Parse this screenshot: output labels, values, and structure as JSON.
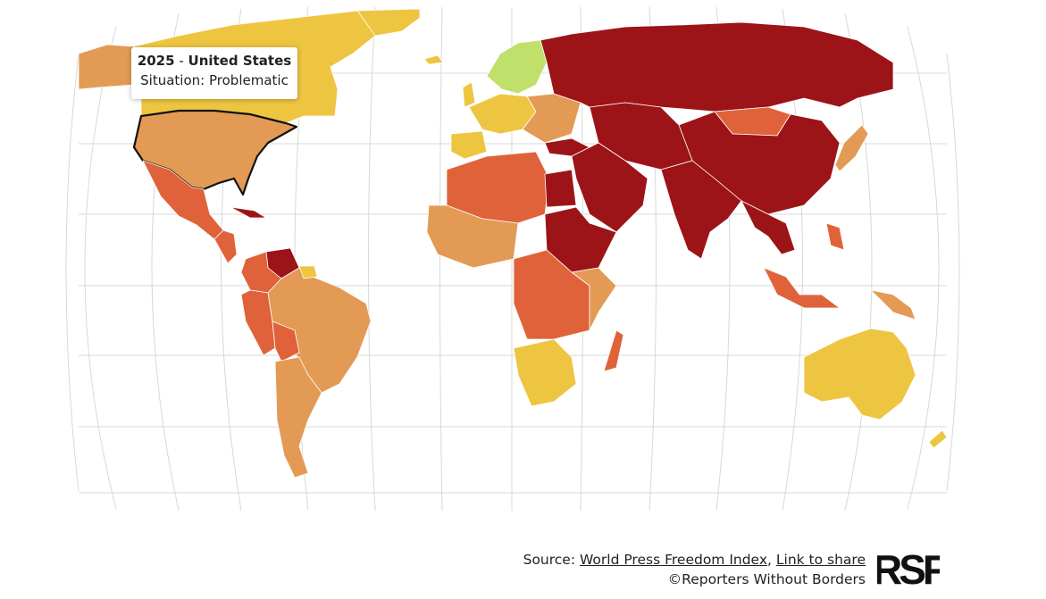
{
  "tooltip": {
    "year": "2025",
    "separator": " - ",
    "country": "United States",
    "situation_label": "Situation:",
    "situation_value": "Problematic"
  },
  "footer": {
    "source_label": "Source:",
    "source_link": "World Press Freedom Index",
    "comma": ",",
    "share_link": "Link to share",
    "copyright": "©Reporters Without Borders"
  },
  "logo": {
    "text": "RSF"
  },
  "legend_colors": {
    "good": "#bfe06a",
    "satisfactory": "#eec540",
    "problematic": "#e39a54",
    "difficult": "#e0623a",
    "very_serious": "#9c1418"
  }
}
